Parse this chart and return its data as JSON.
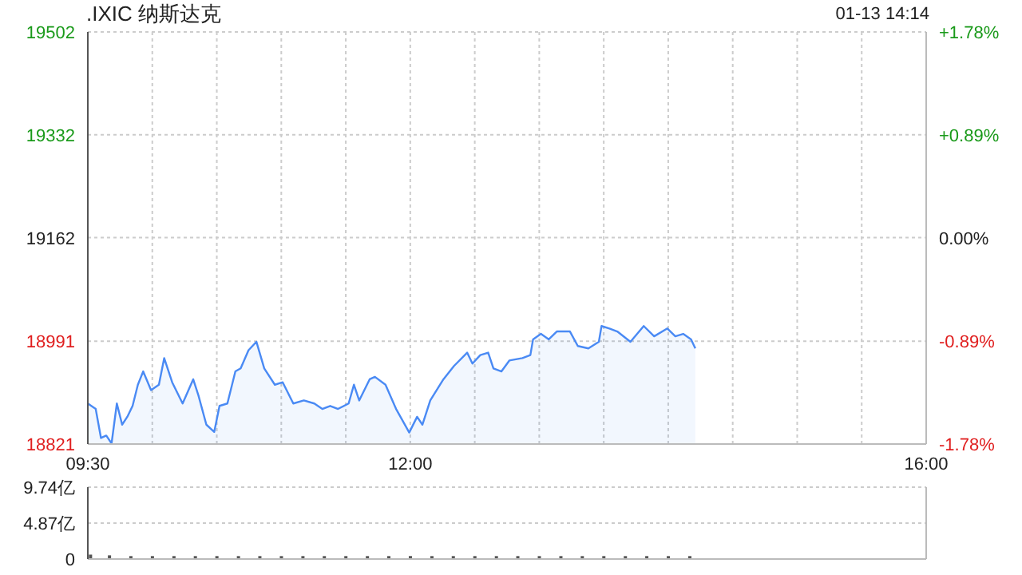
{
  "chart_data": [
    {
      "type": "area",
      "title": ".IXIC 纳斯达克",
      "annotations": [
        "01-13 14:14"
      ],
      "x": [
        9.5,
        9.561,
        9.602,
        9.643,
        9.684,
        9.725,
        9.766,
        9.806,
        9.847,
        9.888,
        9.929,
        9.99,
        10.051,
        10.092,
        10.154,
        10.235,
        10.317,
        10.358,
        10.419,
        10.48,
        10.521,
        10.582,
        10.644,
        10.685,
        10.746,
        10.807,
        10.868,
        10.95,
        11.011,
        11.093,
        11.175,
        11.256,
        11.318,
        11.379,
        11.44,
        11.522,
        11.563,
        11.604,
        11.685,
        11.726,
        11.808,
        11.89,
        11.992,
        12.053,
        12.094,
        12.155,
        12.257,
        12.339,
        12.441,
        12.482,
        12.543,
        12.604,
        12.645,
        12.707,
        12.768,
        12.87,
        12.931,
        12.952,
        13.013,
        13.074,
        13.136,
        13.238,
        13.299,
        13.381,
        13.462,
        13.483,
        13.544,
        13.605,
        13.707,
        13.81,
        13.891,
        13.993,
        14.055,
        14.116,
        14.177,
        14.21
      ],
      "series": [
        {
          "color": "#4a8af4",
          "values": [
            18888,
            18879,
            18831,
            18835,
            18822,
            18888,
            18853,
            18866,
            18884,
            18919,
            18941,
            18910,
            18919,
            18963,
            18923,
            18888,
            18928,
            18901,
            18853,
            18841,
            18884,
            18888,
            18941,
            18946,
            18976,
            18990,
            18946,
            18919,
            18923,
            18888,
            18893,
            18888,
            18879,
            18884,
            18879,
            18888,
            18919,
            18893,
            18928,
            18932,
            18919,
            18879,
            18840,
            18866,
            18853,
            18893,
            18928,
            18950,
            18972,
            18954,
            18968,
            18972,
            18946,
            18941,
            18959,
            18963,
            18968,
            18994,
            19003,
            18994,
            19007,
            19007,
            18983,
            18979,
            18990,
            19016,
            19012,
            19007,
            18990,
            19016,
            18999,
            19012,
            18999,
            19003,
            18994,
            18979
          ]
        }
      ],
      "xlim": [
        9.5,
        16
      ],
      "xticks": [
        {
          "value": 9.5,
          "label": "09:30"
        },
        {
          "value": 10,
          "label": null
        },
        {
          "value": 10.5,
          "label": null
        },
        {
          "value": 11,
          "label": null
        },
        {
          "value": 11.5,
          "label": null
        },
        {
          "value": 12,
          "label": "12:00"
        },
        {
          "value": 12.5,
          "label": null
        },
        {
          "value": 13,
          "label": null
        },
        {
          "value": 13.5,
          "label": null
        },
        {
          "value": 14,
          "label": null
        },
        {
          "value": 14.5,
          "label": null
        },
        {
          "value": 15,
          "label": null
        },
        {
          "value": 15.5,
          "label": null
        },
        {
          "value": 16,
          "label": "16:00"
        }
      ],
      "ylim": [
        18821,
        19502
      ],
      "yticks": [
        18821,
        18991,
        19162,
        19332,
        19502
      ],
      "y2lim": [
        -1.78,
        1.78
      ],
      "y2ticks": [
        {
          "value": -1.78,
          "label": "-1.78%"
        },
        {
          "value": -0.89,
          "label": "-0.89%"
        },
        {
          "value": 0,
          "label": "0.00%"
        },
        {
          "value": 0.89,
          "label": "+0.89%"
        },
        {
          "value": 1.78,
          "label": "+1.78%"
        }
      ],
      "grid": true,
      "legend": false
    },
    {
      "type": "bar",
      "xlim": [
        9.5,
        16
      ],
      "x": [
        9.52,
        9.667,
        9.833,
        10,
        10.167,
        10.333,
        10.5,
        10.667,
        10.833,
        11,
        11.167,
        11.333,
        11.5,
        11.667,
        11.833,
        12,
        12.167,
        12.333,
        12.5,
        12.667,
        12.833,
        13,
        13.167,
        13.333,
        13.5,
        13.667,
        13.833,
        14,
        14.167
      ],
      "series": [
        {
          "color": "#555555",
          "values": [
            0.6,
            0.5,
            0.4,
            0.4,
            0.4,
            0.4,
            0.4,
            0.4,
            0.4,
            0.4,
            0.4,
            0.4,
            0.4,
            0.4,
            0.4,
            0.4,
            0.4,
            0.4,
            0.4,
            0.4,
            0.4,
            0.4,
            0.4,
            0.4,
            0.4,
            0.4,
            0.4,
            0.4,
            0.4
          ]
        }
      ],
      "ylim": [
        0,
        9.74
      ],
      "yticks": [
        0,
        {
          "value": 4.87,
          "label": "4.87亿"
        },
        {
          "value": 9.74,
          "label": "9.74亿"
        }
      ],
      "tick_labels": "y",
      "grid": "y",
      "legend": false
    }
  ]
}
